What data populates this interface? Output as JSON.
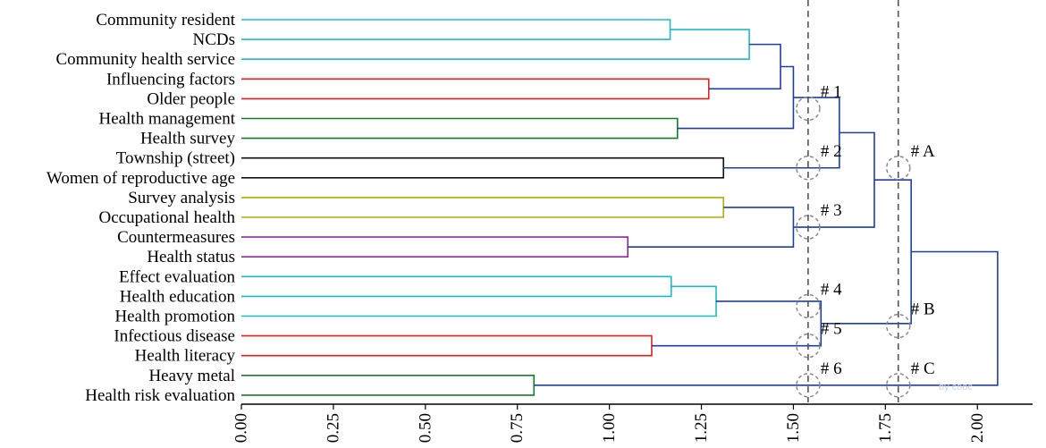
{
  "chart_data": {
    "type": "dendrogram",
    "title": "",
    "xlabel": "",
    "ylabel": "",
    "xlim": [
      0,
      2.15
    ],
    "xticks": [
      "0.00",
      "0.25",
      "0.50",
      "0.75",
      "1.00",
      "1.25",
      "1.50",
      "1.75",
      "2.00"
    ],
    "xtick_values": [
      0,
      0.25,
      0.5,
      0.75,
      1.0,
      1.25,
      1.5,
      1.75,
      2.0
    ],
    "grid": false,
    "leaves": [
      "Community resident",
      "NCDs",
      "Community health service",
      "Influencing factors",
      "Older people",
      "Health management",
      "Health survey",
      "Township (street)",
      "Women of reproductive age",
      "Survey analysis",
      "Occupational health",
      "Countermeasures",
      "Health status",
      "Effect evaluation",
      "Health education",
      "Health promotion",
      "Infectious disease",
      "Health literacy",
      "Heavy metal",
      "Health risk evaluation"
    ],
    "merges": [
      {
        "id": "n1",
        "left": 0,
        "right": 1,
        "height": 1.165,
        "color": "#22b8c0"
      },
      {
        "id": "n2",
        "left": "n1",
        "right": 2,
        "height": 1.38,
        "color": "#22b8c0"
      },
      {
        "id": "n3",
        "left": 3,
        "right": 4,
        "height": 1.27,
        "color": "#e02020"
      },
      {
        "id": "n4",
        "left": "n2",
        "right": "n3",
        "height": 1.465,
        "color": "#1f3f9e"
      },
      {
        "id": "n5",
        "left": 5,
        "right": 6,
        "height": 1.185,
        "color": "#1a7a2a"
      },
      {
        "id": "n6",
        "left": "n4",
        "right": "n5",
        "height": 1.5,
        "color": "#1f3f9e"
      },
      {
        "id": "n7",
        "left": 7,
        "right": 8,
        "height": 1.31,
        "color": "#111111"
      },
      {
        "id": "n8",
        "left": "n6",
        "right": "n7",
        "height": 1.625,
        "color": "#1f3f9e"
      },
      {
        "id": "n9",
        "left": 9,
        "right": 10,
        "height": 1.31,
        "color": "#a8b000"
      },
      {
        "id": "n10",
        "left": 11,
        "right": 12,
        "height": 1.05,
        "color": "#8e2aa0"
      },
      {
        "id": "n11",
        "left": "n9",
        "right": "n10",
        "height": 1.5,
        "color": "#1f3f9e"
      },
      {
        "id": "n12",
        "left": "n8",
        "right": "n11",
        "height": 1.72,
        "color": "#1f3f9e"
      },
      {
        "id": "n13",
        "left": 13,
        "right": 14,
        "height": 1.168,
        "color": "#22b8c0"
      },
      {
        "id": "n14",
        "left": "n13",
        "right": 15,
        "height": 1.29,
        "color": "#22b8c0"
      },
      {
        "id": "n15",
        "left": 16,
        "right": 17,
        "height": 1.115,
        "color": "#e02020"
      },
      {
        "id": "n16",
        "left": "n14",
        "right": "n15",
        "height": 1.575,
        "color": "#1f3f9e"
      },
      {
        "id": "n17",
        "left": "n12",
        "right": "n16",
        "height": 1.82,
        "color": "#1f3f9e"
      },
      {
        "id": "n18",
        "left": 18,
        "right": 19,
        "height": 0.795,
        "color": "#1a7a2a"
      },
      {
        "id": "n19",
        "left": "n17",
        "right": "n18",
        "height": 2.055,
        "color": "#1f3f9e"
      }
    ],
    "cut_lines": [
      1.54,
      1.785
    ],
    "annotations": [
      {
        "text": "# 1",
        "x": 1.54,
        "y": "between 4 and 5"
      },
      {
        "text": "# 2",
        "x": 1.54,
        "y": "between 7 and 8"
      },
      {
        "text": "# 3",
        "x": 1.54,
        "y": "between 10 and 11"
      },
      {
        "text": "# 4",
        "x": 1.54,
        "y": "between 14 and 15"
      },
      {
        "text": "# 5",
        "x": 1.54,
        "y": "between 16 and 17"
      },
      {
        "text": "# 6",
        "x": 1.54,
        "y": "between 18 and 19"
      },
      {
        "text": "# A",
        "x": 1.785,
        "y": "between 7 and 8"
      },
      {
        "text": "# B",
        "x": 1.785,
        "y": "between 15 and 16"
      },
      {
        "text": "# C",
        "x": 1.785,
        "y": "between 18 and 19"
      }
    ],
    "watermark": "by cooc"
  }
}
